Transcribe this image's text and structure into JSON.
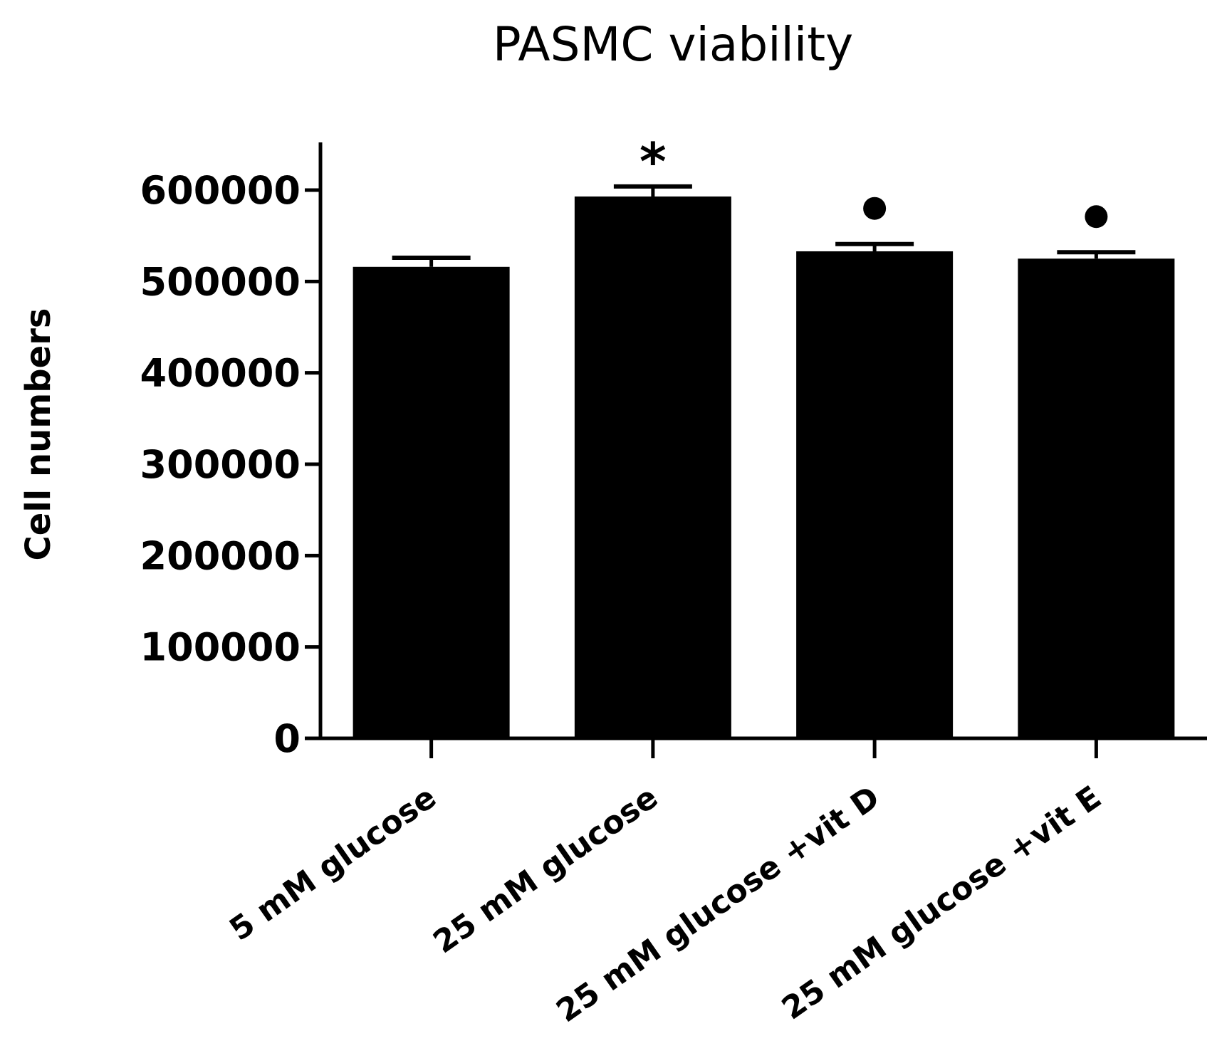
{
  "chart_data": {
    "type": "bar",
    "title": "PASMC viability",
    "xlabel": "",
    "ylabel": "Cell numbers",
    "categories": [
      "5 mM glucose",
      "25 mM glucose",
      "25 mM glucose +vit D",
      "25 mM glucose +vit E"
    ],
    "values": [
      516000,
      593000,
      533000,
      525000
    ],
    "errors": [
      10000,
      11000,
      8000,
      7000
    ],
    "annotations": [
      "",
      "*",
      "●",
      "●"
    ],
    "yticks": [
      "0",
      "100000",
      "200000",
      "300000",
      "400000",
      "500000",
      "600000"
    ],
    "ylim": [
      0,
      650000
    ],
    "grid": false,
    "legend": "none",
    "bar_color": "#000000"
  }
}
